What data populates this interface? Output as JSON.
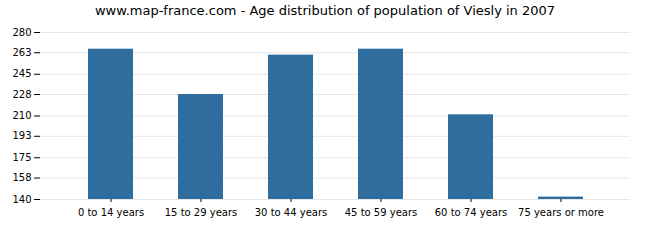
{
  "chart_data": {
    "type": "bar",
    "title": "www.map-france.com - Age distribution of population of Viesly in 2007",
    "categories": [
      "0 to 14 years",
      "15 to 29 years",
      "30 to 44 years",
      "45 to 59 years",
      "60 to 74 years",
      "75 years or more"
    ],
    "values": [
      266,
      228,
      261,
      266,
      211,
      142
    ],
    "color": "#2e6d9e",
    "ylim": [
      140,
      280
    ],
    "yticks": [
      140,
      158,
      175,
      193,
      210,
      228,
      245,
      263,
      280
    ],
    "grid": true
  }
}
